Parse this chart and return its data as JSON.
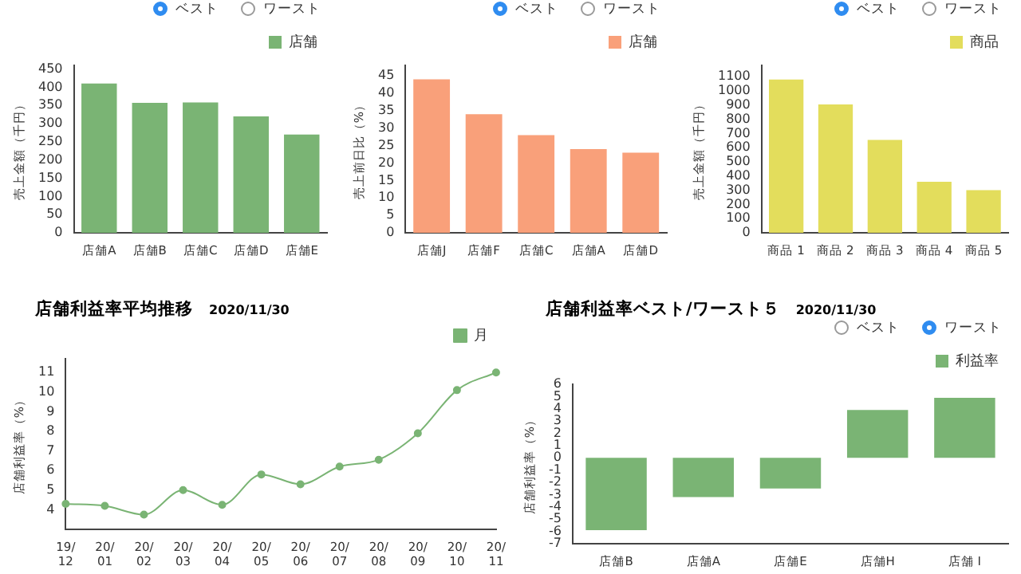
{
  "chart_data": [
    {
      "type": "bar",
      "ylabel": "売上金額（千円）",
      "categories": [
        "店舗A",
        "店舗B",
        "店舗C",
        "店舗D",
        "店舗E"
      ],
      "series": [
        {
          "name": "店舗",
          "color": "#7ab474",
          "values": [
            410,
            357,
            358,
            320,
            270
          ]
        }
      ],
      "ylim": [
        0,
        460
      ],
      "yticks": [
        0,
        50,
        100,
        150,
        200,
        250,
        300,
        350,
        400,
        450
      ],
      "legend": "top right",
      "annotations": [
        "ベスト",
        "ワースト"
      ]
    },
    {
      "type": "bar",
      "ylabel": "売上前日比（%）",
      "categories": [
        "店舗J",
        "店舗F",
        "店舗C",
        "店舗A",
        "店舗D"
      ],
      "series": [
        {
          "name": "店舗",
          "color": "#f9a07a",
          "values": [
            44,
            34,
            28,
            24,
            23
          ]
        }
      ],
      "ylim": [
        0,
        48
      ],
      "yticks": [
        0,
        5,
        10,
        15,
        20,
        25,
        30,
        35,
        40,
        45
      ],
      "legend": "top right",
      "annotations": [
        "ベスト",
        "ワースト"
      ]
    },
    {
      "type": "bar",
      "ylabel": "売上金額（千円）",
      "categories": [
        "商品 1",
        "商品 2",
        "商品 3",
        "商品 4",
        "商品 5"
      ],
      "series": [
        {
          "name": "商品",
          "color": "#e3dd5c",
          "values": [
            1080,
            905,
            655,
            360,
            300
          ]
        }
      ],
      "ylim": [
        0,
        1180
      ],
      "yticks": [
        0,
        100,
        200,
        300,
        400,
        500,
        600,
        700,
        800,
        900,
        1000,
        1100
      ],
      "legend": "top right",
      "annotations": [
        "ベスト",
        "ワースト"
      ]
    },
    {
      "type": "line",
      "title": "店舗利益率平均推移",
      "subtitle": "2020/11/30",
      "ylabel": "店舗利益率（%）",
      "categories": [
        "19/12",
        "20/01",
        "20/02",
        "20/03",
        "20/04",
        "20/05",
        "20/06",
        "20/07",
        "20/08",
        "20/09",
        "20/10",
        "20/11"
      ],
      "series": [
        {
          "name": "月",
          "color": "#7ab474",
          "values": [
            4.3,
            4.2,
            3.75,
            5.0,
            4.25,
            5.8,
            5.3,
            6.2,
            6.55,
            7.9,
            10.1,
            11.0
          ]
        }
      ],
      "ylim": [
        3,
        11.7
      ],
      "yticks": [
        4,
        5,
        6,
        7,
        8,
        9,
        10,
        11
      ],
      "legend": "top right",
      "marker": "circle"
    },
    {
      "type": "bar",
      "title": "店舗利益率ベスト/ワースト５",
      "subtitle": "2020/11/30",
      "ylabel": "店舗利益率（%）",
      "categories": [
        "店舗B",
        "店舗A",
        "店舗E",
        "店舗H",
        "店舗 I"
      ],
      "series": [
        {
          "name": "利益率",
          "color": "#7ab474",
          "values": [
            -5.9,
            -3.2,
            -2.5,
            3.9,
            4.9
          ]
        }
      ],
      "ylim": [
        -7,
        6
      ],
      "yticks": [
        -7,
        -6,
        -5,
        -4,
        -3,
        -2,
        -1,
        0,
        1,
        2,
        3,
        4,
        5,
        6
      ],
      "legend": "top right",
      "annotations": [
        "ベスト",
        "ワースト"
      ]
    }
  ]
}
